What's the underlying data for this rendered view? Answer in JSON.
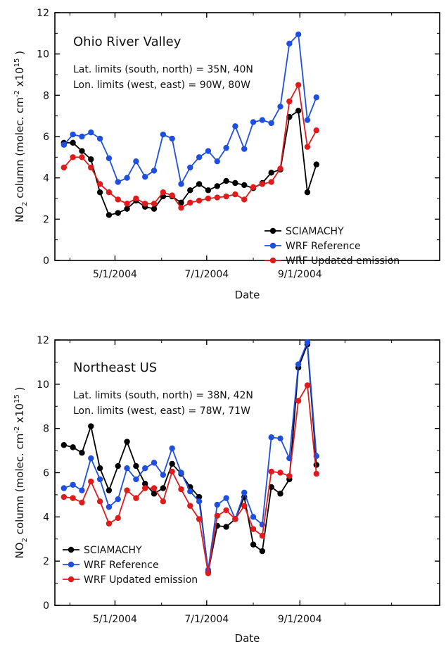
{
  "chart_data": [
    {
      "type": "line",
      "title": "Ohio River Valley",
      "annotations": [
        "Lat. limits (south, north) = 35N, 40N",
        "Lon. limits (west, east) = 90W, 80W"
      ],
      "xlabel": "Date",
      "ylabel": "NO2 column (molec. cm-2 x10^15)",
      "ylim": [
        0,
        12
      ],
      "yticks": [
        0,
        2,
        4,
        6,
        8,
        10,
        12
      ],
      "xlim": [
        "2004-03-22",
        "2004-12-03"
      ],
      "xticks": [
        {
          "date": "2004-05-01",
          "label": "5/1/2004"
        },
        {
          "date": "2004-07-01",
          "label": "7/1/2004"
        },
        {
          "date": "2004-09-01",
          "label": "9/1/2004"
        }
      ],
      "legend_position": "bottom-right",
      "series": [
        {
          "name": "SCIAMACHY",
          "color": "#000000",
          "points": [
            [
              "2004-03-28",
              5.7
            ],
            [
              "2004-04-03",
              5.7
            ],
            [
              "2004-04-09",
              5.3
            ],
            [
              "2004-04-15",
              4.9
            ],
            [
              "2004-04-21",
              3.3
            ],
            [
              "2004-04-27",
              2.2
            ],
            [
              "2004-05-03",
              2.3
            ],
            [
              "2004-05-09",
              2.5
            ],
            [
              "2004-05-15",
              2.9
            ],
            [
              "2004-05-21",
              2.6
            ],
            [
              "2004-05-27",
              2.5
            ],
            [
              "2004-06-02",
              3.1
            ],
            [
              "2004-06-08",
              3.1
            ],
            [
              "2004-06-14",
              2.8
            ],
            [
              "2004-06-20",
              3.4
            ],
            [
              "2004-06-26",
              3.7
            ],
            [
              "2004-07-02",
              3.4
            ],
            [
              "2004-07-08",
              3.6
            ],
            [
              "2004-07-14",
              3.85
            ],
            [
              "2004-07-20",
              3.75
            ],
            [
              "2004-07-26",
              3.65
            ],
            [
              "2004-08-01",
              3.5
            ],
            [
              "2004-08-07",
              3.75
            ],
            [
              "2004-08-13",
              4.25
            ],
            [
              "2004-08-19",
              4.4
            ],
            [
              "2004-08-25",
              6.95
            ],
            [
              "2004-08-31",
              7.25
            ],
            [
              "2004-09-06",
              3.3
            ],
            [
              "2004-09-12",
              4.65
            ]
          ]
        },
        {
          "name": "WRF Reference",
          "color": "#1f4fe0",
          "points": [
            [
              "2004-03-28",
              5.6
            ],
            [
              "2004-04-03",
              6.1
            ],
            [
              "2004-04-09",
              6.0
            ],
            [
              "2004-04-15",
              6.2
            ],
            [
              "2004-04-21",
              5.9
            ],
            [
              "2004-04-27",
              4.95
            ],
            [
              "2004-05-03",
              3.8
            ],
            [
              "2004-05-09",
              4.0
            ],
            [
              "2004-05-15",
              4.8
            ],
            [
              "2004-05-21",
              4.05
            ],
            [
              "2004-05-27",
              4.35
            ],
            [
              "2004-06-02",
              6.1
            ],
            [
              "2004-06-08",
              5.9
            ],
            [
              "2004-06-14",
              3.7
            ],
            [
              "2004-06-20",
              4.5
            ],
            [
              "2004-06-26",
              5.0
            ],
            [
              "2004-07-02",
              5.3
            ],
            [
              "2004-07-08",
              4.8
            ],
            [
              "2004-07-14",
              5.45
            ],
            [
              "2004-07-20",
              6.5
            ],
            [
              "2004-07-26",
              5.4
            ],
            [
              "2004-08-01",
              6.7
            ],
            [
              "2004-08-07",
              6.8
            ],
            [
              "2004-08-13",
              6.65
            ],
            [
              "2004-08-19",
              7.45
            ],
            [
              "2004-08-25",
              10.5
            ],
            [
              "2004-08-31",
              10.95
            ],
            [
              "2004-09-06",
              6.8
            ],
            [
              "2004-09-12",
              7.9
            ]
          ]
        },
        {
          "name": "WRF Updated emission",
          "color": "#e01b1b",
          "points": [
            [
              "2004-03-28",
              4.5
            ],
            [
              "2004-04-03",
              5.0
            ],
            [
              "2004-04-09",
              5.0
            ],
            [
              "2004-04-15",
              4.5
            ],
            [
              "2004-04-21",
              3.7
            ],
            [
              "2004-04-27",
              3.3
            ],
            [
              "2004-05-03",
              2.95
            ],
            [
              "2004-05-09",
              2.75
            ],
            [
              "2004-05-15",
              3.0
            ],
            [
              "2004-05-21",
              2.75
            ],
            [
              "2004-05-27",
              2.75
            ],
            [
              "2004-06-02",
              3.3
            ],
            [
              "2004-06-08",
              3.15
            ],
            [
              "2004-06-14",
              2.55
            ],
            [
              "2004-06-20",
              2.8
            ],
            [
              "2004-06-26",
              2.9
            ],
            [
              "2004-07-02",
              3.0
            ],
            [
              "2004-07-08",
              3.05
            ],
            [
              "2004-07-14",
              3.1
            ],
            [
              "2004-07-20",
              3.2
            ],
            [
              "2004-07-26",
              2.95
            ],
            [
              "2004-08-01",
              3.55
            ],
            [
              "2004-08-07",
              3.7
            ],
            [
              "2004-08-13",
              3.8
            ],
            [
              "2004-08-19",
              4.45
            ],
            [
              "2004-08-25",
              7.7
            ],
            [
              "2004-08-31",
              8.5
            ],
            [
              "2004-09-06",
              5.5
            ],
            [
              "2004-09-12",
              6.3
            ]
          ]
        }
      ]
    },
    {
      "type": "line",
      "title": "Northeast US",
      "annotations": [
        "Lat. limits (south, north) = 38N, 42N",
        "Lon. limits (west, east) = 78W, 71W"
      ],
      "xlabel": "Date",
      "ylabel": "NO2 column (molec. cm-2 x10^15)",
      "ylim": [
        0,
        12
      ],
      "yticks": [
        0,
        2,
        4,
        6,
        8,
        10,
        12
      ],
      "xlim": [
        "2004-03-22",
        "2004-12-03"
      ],
      "xticks": [
        {
          "date": "2004-05-01",
          "label": "5/1/2004"
        },
        {
          "date": "2004-07-01",
          "label": "7/1/2004"
        },
        {
          "date": "2004-09-01",
          "label": "9/1/2004"
        }
      ],
      "legend_position": "bottom-left",
      "series": [
        {
          "name": "SCIAMACHY",
          "color": "#000000",
          "points": [
            [
              "2004-03-28",
              7.25
            ],
            [
              "2004-04-03",
              7.15
            ],
            [
              "2004-04-09",
              6.9
            ],
            [
              "2004-04-15",
              8.1
            ],
            [
              "2004-04-21",
              6.2
            ],
            [
              "2004-04-27",
              5.2
            ],
            [
              "2004-05-03",
              6.3
            ],
            [
              "2004-05-09",
              7.4
            ],
            [
              "2004-05-15",
              6.3
            ],
            [
              "2004-05-21",
              5.5
            ],
            [
              "2004-05-27",
              5.05
            ],
            [
              "2004-06-02",
              5.3
            ],
            [
              "2004-06-08",
              6.4
            ],
            [
              "2004-06-14",
              5.95
            ],
            [
              "2004-06-20",
              5.35
            ],
            [
              "2004-06-26",
              4.9
            ],
            [
              "2004-07-02",
              1.5
            ],
            [
              "2004-07-08",
              3.6
            ],
            [
              "2004-07-14",
              3.55
            ],
            [
              "2004-07-20",
              3.9
            ],
            [
              "2004-07-26",
              4.9
            ],
            [
              "2004-08-01",
              2.75
            ],
            [
              "2004-08-07",
              2.45
            ],
            [
              "2004-08-13",
              5.35
            ],
            [
              "2004-08-19",
              5.05
            ],
            [
              "2004-08-25",
              5.7
            ],
            [
              "2004-08-31",
              10.75
            ],
            [
              "2004-09-06",
              11.8
            ],
            [
              "2004-09-12",
              6.35
            ]
          ]
        },
        {
          "name": "WRF Reference",
          "color": "#1f4fe0",
          "points": [
            [
              "2004-03-28",
              5.3
            ],
            [
              "2004-04-03",
              5.45
            ],
            [
              "2004-04-09",
              5.2
            ],
            [
              "2004-04-15",
              6.65
            ],
            [
              "2004-04-21",
              5.7
            ],
            [
              "2004-04-27",
              4.45
            ],
            [
              "2004-05-03",
              4.8
            ],
            [
              "2004-05-09",
              6.2
            ],
            [
              "2004-05-15",
              5.7
            ],
            [
              "2004-05-21",
              6.2
            ],
            [
              "2004-05-27",
              6.45
            ],
            [
              "2004-06-02",
              5.9
            ],
            [
              "2004-06-08",
              7.1
            ],
            [
              "2004-06-14",
              6.0
            ],
            [
              "2004-06-20",
              5.15
            ],
            [
              "2004-06-26",
              4.7
            ],
            [
              "2004-07-02",
              1.6
            ],
            [
              "2004-07-08",
              4.55
            ],
            [
              "2004-07-14",
              4.85
            ],
            [
              "2004-07-20",
              3.9
            ],
            [
              "2004-07-26",
              5.1
            ],
            [
              "2004-08-01",
              4.0
            ],
            [
              "2004-08-07",
              3.65
            ],
            [
              "2004-08-13",
              7.6
            ],
            [
              "2004-08-19",
              7.55
            ],
            [
              "2004-08-25",
              6.65
            ],
            [
              "2004-08-31",
              10.9
            ],
            [
              "2004-09-06",
              11.9
            ],
            [
              "2004-09-12",
              6.75
            ]
          ]
        },
        {
          "name": "WRF Updated emission",
          "color": "#e01b1b",
          "points": [
            [
              "2004-03-28",
              4.9
            ],
            [
              "2004-04-03",
              4.85
            ],
            [
              "2004-04-09",
              4.65
            ],
            [
              "2004-04-15",
              5.6
            ],
            [
              "2004-04-21",
              4.7
            ],
            [
              "2004-04-27",
              3.7
            ],
            [
              "2004-05-03",
              3.95
            ],
            [
              "2004-05-09",
              5.2
            ],
            [
              "2004-05-15",
              4.85
            ],
            [
              "2004-05-21",
              5.3
            ],
            [
              "2004-05-27",
              5.3
            ],
            [
              "2004-06-02",
              4.7
            ],
            [
              "2004-06-08",
              6.05
            ],
            [
              "2004-06-14",
              5.25
            ],
            [
              "2004-06-20",
              4.5
            ],
            [
              "2004-06-26",
              3.9
            ],
            [
              "2004-07-02",
              1.45
            ],
            [
              "2004-07-08",
              4.05
            ],
            [
              "2004-07-14",
              4.3
            ],
            [
              "2004-07-20",
              3.9
            ],
            [
              "2004-07-26",
              4.5
            ],
            [
              "2004-08-01",
              3.45
            ],
            [
              "2004-08-07",
              3.15
            ],
            [
              "2004-08-13",
              6.05
            ],
            [
              "2004-08-19",
              6.0
            ],
            [
              "2004-08-25",
              5.85
            ],
            [
              "2004-08-31",
              9.25
            ],
            [
              "2004-09-06",
              9.95
            ],
            [
              "2004-09-12",
              5.95
            ]
          ]
        }
      ]
    }
  ]
}
